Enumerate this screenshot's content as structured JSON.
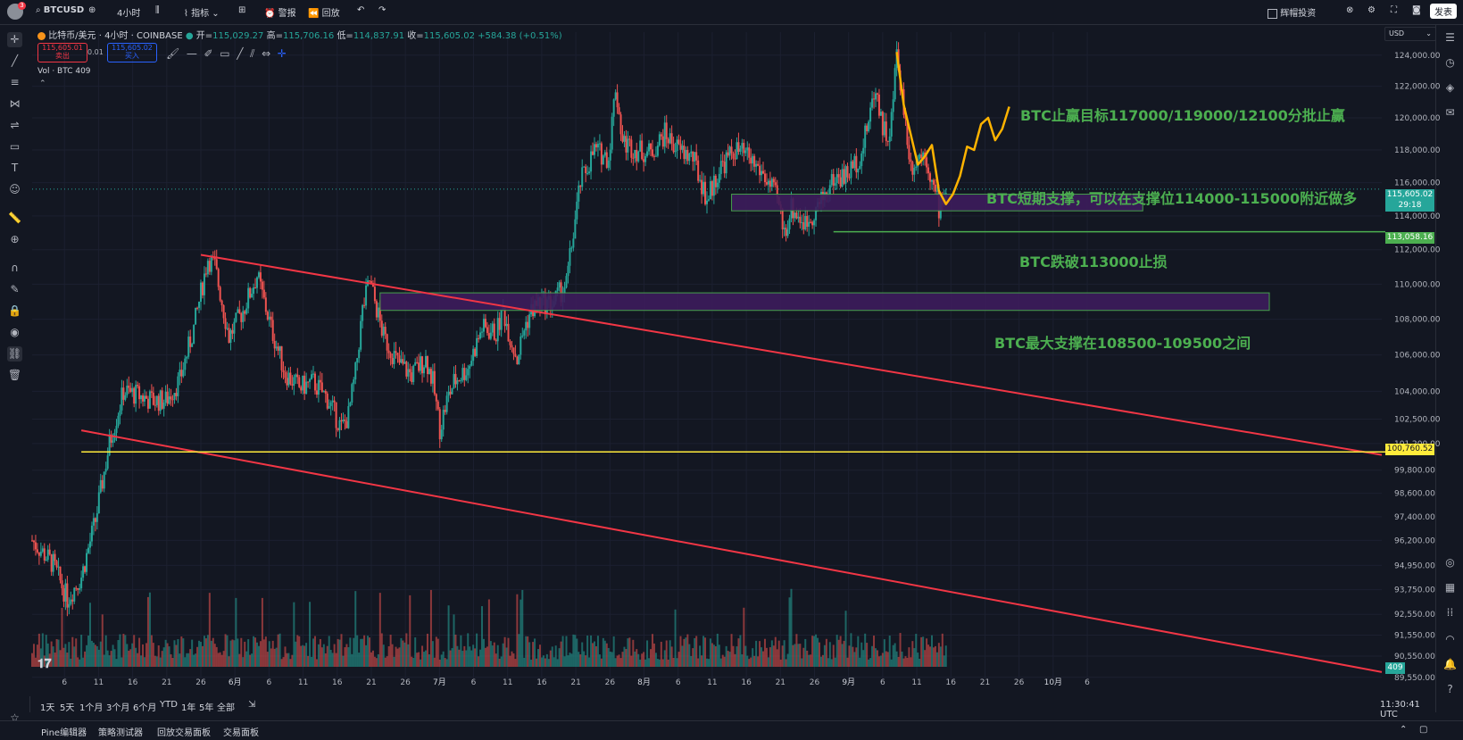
{
  "topbar": {
    "symbol": "BTCUSD",
    "interval": "4小时",
    "indicators": "指标",
    "alert": "警报",
    "replay": "回放",
    "trade_label": "辉帽投资",
    "publish": "发表",
    "avatar_badge": "3"
  },
  "legend": {
    "name": "比特币/美元 · 4小时 · COINBASE",
    "open_label": "开=",
    "open": "115,029.27",
    "high_label": "高=",
    "high": "115,706.16",
    "low_label": "低=",
    "low": "114,837.91",
    "close_label": "收=",
    "close": "115,605.02",
    "change": "+584.38 (+0.51%)",
    "sell_price": "115,605.01",
    "sell_label": "卖出",
    "spread": "0.01",
    "buy_price": "115,605.02",
    "buy_label": "买入",
    "vol_label": "Vol · BTC",
    "vol_value": "409"
  },
  "currency": "USD",
  "time_ranges": [
    "1天",
    "5天",
    "1个月",
    "3个月",
    "6个月",
    "YTD",
    "1年",
    "5年",
    "全部"
  ],
  "clock": "11:30:41 UTC",
  "bottom_tabs": [
    "Pine编辑器",
    "策略测试器",
    "回放交易面板",
    "交易面板"
  ],
  "chart_data": {
    "type": "candlestick",
    "symbol": "BTCUSD",
    "y_scale": "log",
    "ylim": [
      89500,
      125500
    ],
    "y_ticks": [
      "124,000.00",
      "122,000.00",
      "120,000.00",
      "118,000.00",
      "116,000.00",
      "114,000.00",
      "112,000.00",
      "110,000.00",
      "108,000.00",
      "106,000.00",
      "104,000.00",
      "102,500.00",
      "101,200.00",
      "99,800.00",
      "98,600.00",
      "97,400.00",
      "96,200.00",
      "94,950.00",
      "93,750.00",
      "92,550.00",
      "91,550.00",
      "90,550.00",
      "89,550.00"
    ],
    "x_ticks": [
      "6",
      "11",
      "16",
      "21",
      "26",
      "6月",
      "6",
      "11",
      "16",
      "21",
      "26",
      "7月",
      "6",
      "11",
      "16",
      "21",
      "26",
      "8月",
      "6",
      "11",
      "16",
      "21",
      "26",
      "9月",
      "6",
      "11",
      "16",
      "21",
      "26",
      "10月",
      "6"
    ],
    "price_path": [
      [
        0,
        96200
      ],
      [
        3,
        95000
      ],
      [
        5,
        93300
      ],
      [
        7,
        94400
      ],
      [
        9,
        97200
      ],
      [
        11,
        101200
      ],
      [
        13,
        104000
      ],
      [
        15,
        103800
      ],
      [
        17,
        103500
      ],
      [
        19,
        103500
      ],
      [
        21,
        104600
      ],
      [
        23,
        107500
      ],
      [
        25,
        111500
      ],
      [
        26,
        111000
      ],
      [
        28,
        107000
      ],
      [
        30,
        108500
      ],
      [
        32,
        110500
      ],
      [
        34,
        107500
      ],
      [
        36,
        105000
      ],
      [
        38,
        104200
      ],
      [
        40,
        104500
      ],
      [
        42,
        103600
      ],
      [
        44,
        102000
      ],
      [
        45,
        102700
      ],
      [
        46,
        105000
      ],
      [
        47,
        108500
      ],
      [
        48,
        110200
      ],
      [
        50,
        107000
      ],
      [
        52,
        105600
      ],
      [
        54,
        104900
      ],
      [
        56,
        105800
      ],
      [
        57,
        104500
      ],
      [
        58,
        102000
      ],
      [
        59,
        103500
      ],
      [
        60,
        104500
      ],
      [
        62,
        105300
      ],
      [
        64,
        107500
      ],
      [
        66,
        107200
      ],
      [
        67,
        108500
      ],
      [
        68,
        107000
      ],
      [
        69,
        105800
      ],
      [
        70,
        107500
      ],
      [
        71,
        108500
      ],
      [
        72,
        108900
      ],
      [
        74,
        108900
      ],
      [
        76,
        110000
      ],
      [
        78,
        116000
      ],
      [
        80,
        118000
      ],
      [
        82,
        117500
      ],
      [
        83,
        122000
      ],
      [
        84,
        118500
      ],
      [
        86,
        118000
      ],
      [
        88,
        117800
      ],
      [
        90,
        119000
      ],
      [
        92,
        118000
      ],
      [
        94,
        117500
      ],
      [
        96,
        115000
      ],
      [
        98,
        117000
      ],
      [
        100,
        118000
      ],
      [
        102,
        117500
      ],
      [
        104,
        116500
      ],
      [
        106,
        115000
      ],
      [
        107,
        113000
      ],
      [
        108,
        114500
      ],
      [
        110,
        113500
      ],
      [
        112,
        114700
      ],
      [
        114,
        116200
      ],
      [
        116,
        116500
      ],
      [
        118,
        117800
      ],
      [
        120,
        122000
      ],
      [
        121,
        119500
      ],
      [
        122,
        118500
      ],
      [
        123,
        124200
      ],
      [
        125,
        117000
      ],
      [
        127,
        118000
      ],
      [
        128,
        116000
      ],
      [
        129,
        114500
      ],
      [
        130,
        115600
      ]
    ],
    "volume": {
      "label": "Vol · BTC",
      "last": 409
    },
    "projection": [
      [
        123,
        124200
      ],
      [
        124,
        120800
      ],
      [
        126,
        117100
      ],
      [
        127,
        117600
      ],
      [
        128,
        118300
      ],
      [
        129,
        115500
      ],
      [
        130,
        114700
      ],
      [
        131,
        115300
      ],
      [
        132,
        116400
      ],
      [
        133,
        118200
      ],
      [
        134,
        118000
      ],
      [
        135,
        119600
      ],
      [
        136,
        120000
      ],
      [
        137,
        118600
      ],
      [
        138,
        119300
      ],
      [
        139,
        120700
      ]
    ],
    "zones": [
      {
        "name": "short-term-support-zone",
        "price_low": 114300,
        "price_high": 115300,
        "x_from": 99.5,
        "x_to": 158
      },
      {
        "name": "major-support-zone",
        "price_low": 108500,
        "price_high": 109500,
        "x_from": 49.5,
        "x_to": 176
      }
    ],
    "horizontal_lines": [
      {
        "name": "stop-loss-line",
        "price": 113058.16,
        "label": "113,058.16",
        "color": "#4caf50",
        "x_from": 114
      },
      {
        "name": "key-level-line",
        "price": 100760.52,
        "label": "100,760.52",
        "color": "#ffeb3b",
        "x_from": 7
      }
    ],
    "trend_lines": [
      {
        "name": "upper-channel-line",
        "from": [
          24,
          111700
        ],
        "to": [
          192,
          100600
        ],
        "color": "#f23645"
      },
      {
        "name": "lower-channel-line",
        "from": [
          7,
          101900
        ],
        "to": [
          192,
          89800
        ],
        "color": "#f23645"
      }
    ],
    "last_price": {
      "label": "115,605.02",
      "countdown": "29:18"
    },
    "volume_badge": "409",
    "annotations": [
      "BTC止赢目标117000/119000/12100分批止赢",
      "BTC短期支撑，可以在支撑位114000-115000附近做多",
      "BTC跌破113000止损",
      "BTC最大支撑在108500-109500之间"
    ]
  },
  "colors": {
    "up": "#26a69a",
    "down": "#ef5350",
    "trend": "#f23645",
    "support_fill": "#3d1c5c",
    "support_border": "#4caf50",
    "annotation": "#4caf50",
    "projection": "#ffb300",
    "key_level": "#ffeb3b"
  }
}
